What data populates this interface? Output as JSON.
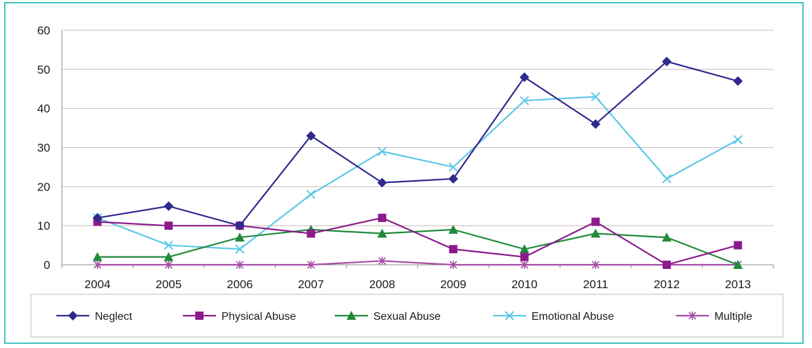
{
  "chart_data": {
    "type": "line",
    "title": "",
    "xlabel": "",
    "ylabel": "",
    "categories": [
      "2004",
      "2005",
      "2006",
      "2007",
      "2008",
      "2009",
      "2010",
      "2011",
      "2012",
      "2013"
    ],
    "ylim": [
      0,
      60
    ],
    "yticks": [
      "0",
      "10",
      "20",
      "30",
      "40",
      "50",
      "60"
    ],
    "grid": "horizontal",
    "legend_position": "bottom",
    "series": [
      {
        "name": "Neglect",
        "color": "#2e2a8e",
        "marker": "diamond",
        "values": [
          12,
          15,
          10,
          33,
          21,
          22,
          48,
          36,
          52,
          47
        ]
      },
      {
        "name": "Physical Abuse",
        "color": "#8b1a8b",
        "marker": "square",
        "values": [
          11,
          10,
          10,
          8,
          12,
          4,
          2,
          11,
          0,
          5
        ]
      },
      {
        "name": "Sexual Abuse",
        "color": "#1f8a3a",
        "marker": "triangle",
        "values": [
          2,
          2,
          7,
          9,
          8,
          9,
          4,
          8,
          7,
          0
        ]
      },
      {
        "name": "Emotional Abuse",
        "color": "#5ec8e6",
        "marker": "x",
        "values": [
          12,
          5,
          4,
          18,
          29,
          25,
          42,
          43,
          22,
          32
        ]
      },
      {
        "name": "Multiple",
        "color": "#a44ca4",
        "marker": "asterisk",
        "values": [
          0,
          0,
          0,
          0,
          1,
          0,
          0,
          0,
          0,
          0
        ]
      }
    ]
  }
}
